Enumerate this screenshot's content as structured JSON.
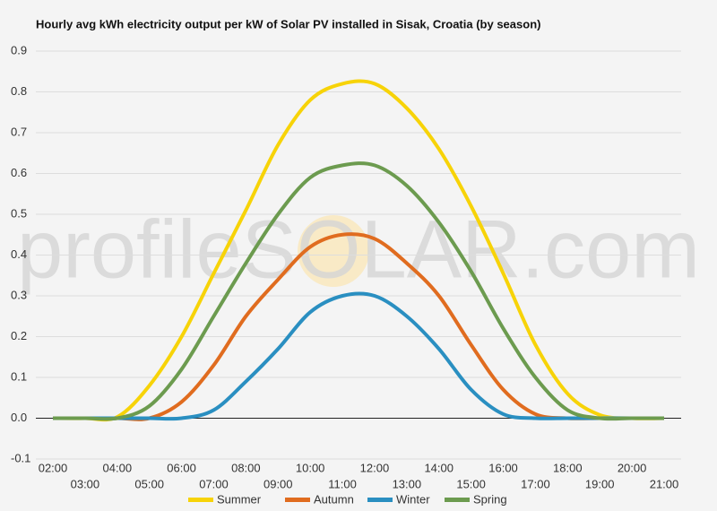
{
  "chart_data": {
    "type": "line",
    "title": "Hourly avg kWh electricity output per kW of Solar PV installed in Sisak, Croatia (by season)",
    "watermark": "profileSOLAR.com",
    "categories": [
      "02:00",
      "03:00",
      "04:00",
      "05:00",
      "06:00",
      "07:00",
      "08:00",
      "09:00",
      "10:00",
      "11:00",
      "12:00",
      "13:00",
      "14:00",
      "15:00",
      "16:00",
      "17:00",
      "18:00",
      "19:00",
      "20:00",
      "21:00"
    ],
    "series": [
      {
        "name": "Summer",
        "color": "#f7d308",
        "values": [
          0,
          0,
          0.003,
          0.08,
          0.2,
          0.355,
          0.51,
          0.67,
          0.78,
          0.82,
          0.82,
          0.76,
          0.66,
          0.52,
          0.355,
          0.18,
          0.06,
          0.008,
          0,
          0
        ]
      },
      {
        "name": "Autumn",
        "color": "#e06c1f",
        "values": [
          0,
          0,
          0,
          0,
          0.04,
          0.13,
          0.25,
          0.34,
          0.42,
          0.45,
          0.44,
          0.38,
          0.3,
          0.18,
          0.07,
          0.01,
          0,
          0,
          0,
          0
        ]
      },
      {
        "name": "Winter",
        "color": "#2a8fc1",
        "values": [
          0,
          0,
          0,
          0,
          0,
          0.02,
          0.09,
          0.17,
          0.26,
          0.3,
          0.3,
          0.25,
          0.17,
          0.07,
          0.01,
          0,
          0,
          0,
          0,
          0
        ]
      },
      {
        "name": "Spring",
        "color": "#6c9b4f",
        "values": [
          0,
          0,
          0,
          0.03,
          0.12,
          0.25,
          0.38,
          0.5,
          0.59,
          0.62,
          0.62,
          0.57,
          0.48,
          0.36,
          0.22,
          0.1,
          0.02,
          0,
          0,
          0
        ]
      }
    ],
    "ylim": [
      -0.1,
      0.9
    ],
    "yticks": [
      -0.1,
      {
        "value": 0,
        "label": "0.0"
      },
      0.1,
      0.2,
      0.3,
      0.4,
      0.5,
      0.6,
      0.7,
      0.8,
      0.9
    ],
    "grid": true
  }
}
